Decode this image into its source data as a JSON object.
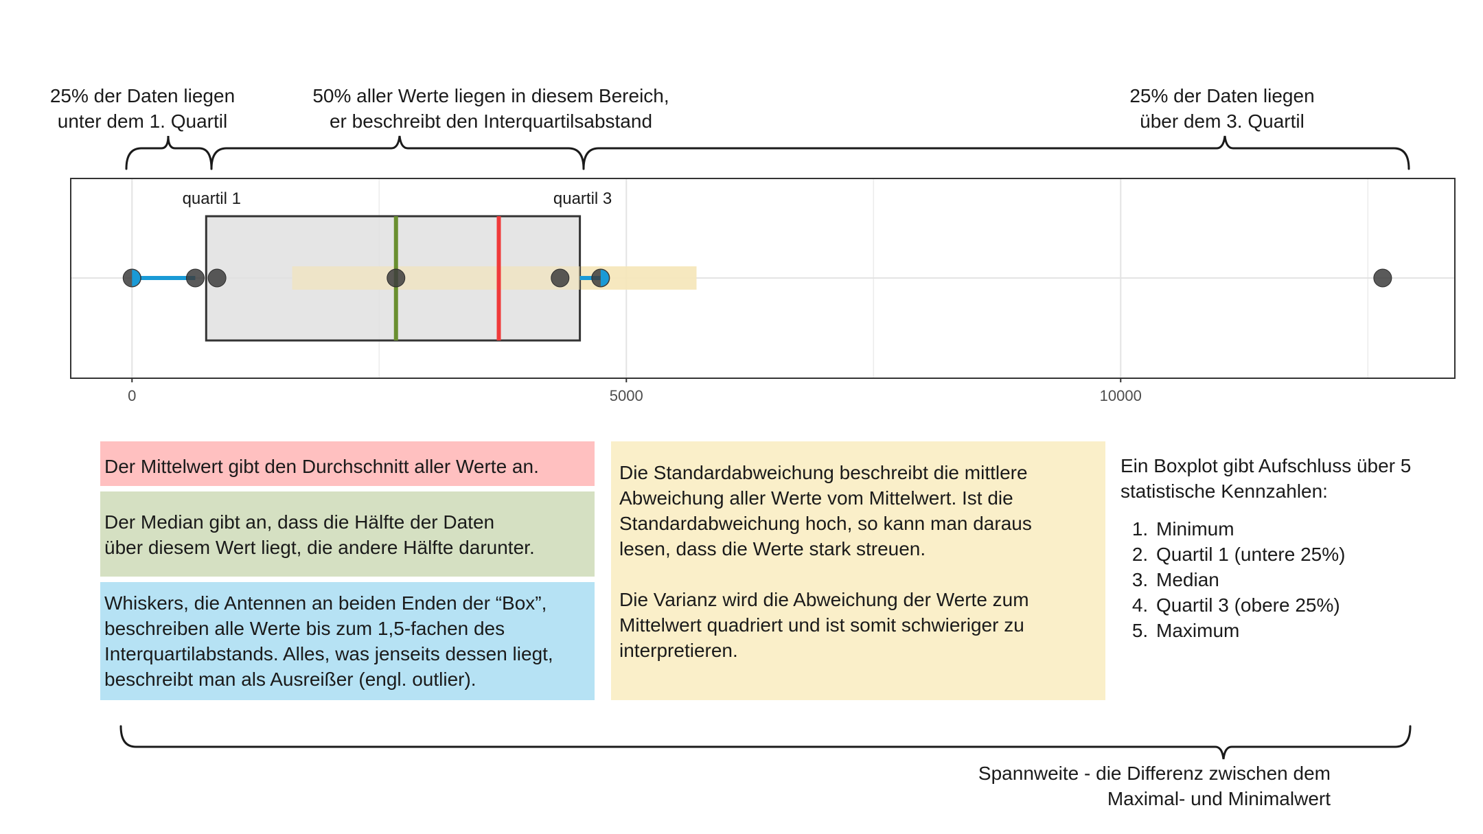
{
  "annotations": {
    "lower_quartile": [
      "25% der Daten liegen",
      "unter dem 1. Quartil"
    ],
    "iqr": [
      "50% aller Werte liegen in diesem Bereich,",
      "er beschreibt den Interquartilsabstand"
    ],
    "upper_quartile": [
      "25% der Daten liegen",
      "über dem 3. Quartil"
    ],
    "range": [
      "Spannweite - die Differenz zwischen dem",
      "Maximal- und Minimalwert"
    ]
  },
  "chart_data": {
    "type": "boxplot",
    "x_ticks": [
      0,
      5000,
      10000
    ],
    "x_tick_labels": [
      "0",
      "5000",
      "10000"
    ],
    "xlim": [
      -620,
      13380
    ],
    "grid": true,
    "quartile_labels": {
      "q1": "quartil 1",
      "q3": "quartil 3"
    },
    "q1": 750,
    "q3": 4530,
    "median": 2670,
    "mean": 3710,
    "std_band": [
      1620,
      5710
    ],
    "whisker_min": 0,
    "whisker_lower_end": 640,
    "whisker_max": 4740,
    "points": [
      0,
      640,
      860,
      2670,
      4330,
      4740,
      12650
    ],
    "colors": {
      "box_fill": "#e0e0e0",
      "median": "#6a8f30",
      "mean": "#f03a3a",
      "whisker": "#1a9ad6",
      "std_band": "#f5e6b8",
      "point": "#3d3d3d"
    }
  },
  "panels": {
    "mean": {
      "lines": [
        "Der Mittelwert gibt den Durchschnitt aller Werte an."
      ],
      "color": "#ffc0c0"
    },
    "median": {
      "lines": [
        "Der Median gibt an, dass die Hälfte der Daten",
        "über diesem Wert liegt, die andere Hälfte darunter."
      ],
      "color": "#d5e0c2"
    },
    "whiskers": {
      "lines": [
        "Whiskers, die Antennen an beiden Enden der “Box”,",
        "beschreiben alle Werte bis zum 1,5-fachen des",
        "Interquartilabstands. Alles, was jenseits dessen liegt,",
        "beschreibt man als Ausreißer (engl. outlier)."
      ],
      "color": "#b6e2f4"
    },
    "std": {
      "para1": [
        "Die Standardabweichung beschreibt die mittlere",
        "Abweichung aller Werte vom Mittelwert. Ist die",
        "Standardabweichung hoch, so kann man daraus",
        "lesen, dass die Werte stark streuen."
      ],
      "para2": [
        "Die Varianz wird die Abweichung der Werte zum",
        "Mittelwert quadriert und ist somit schwieriger zu",
        "interpretieren."
      ],
      "color": "#faefc9"
    }
  },
  "summary": {
    "intro": [
      "Ein Boxplot gibt Aufschluss über 5",
      "statistische Kennzahlen:"
    ],
    "items": [
      "Minimum",
      "Quartil 1 (untere 25%)",
      "Median",
      "Quartil 3 (obere 25%)",
      "Maximum"
    ]
  }
}
